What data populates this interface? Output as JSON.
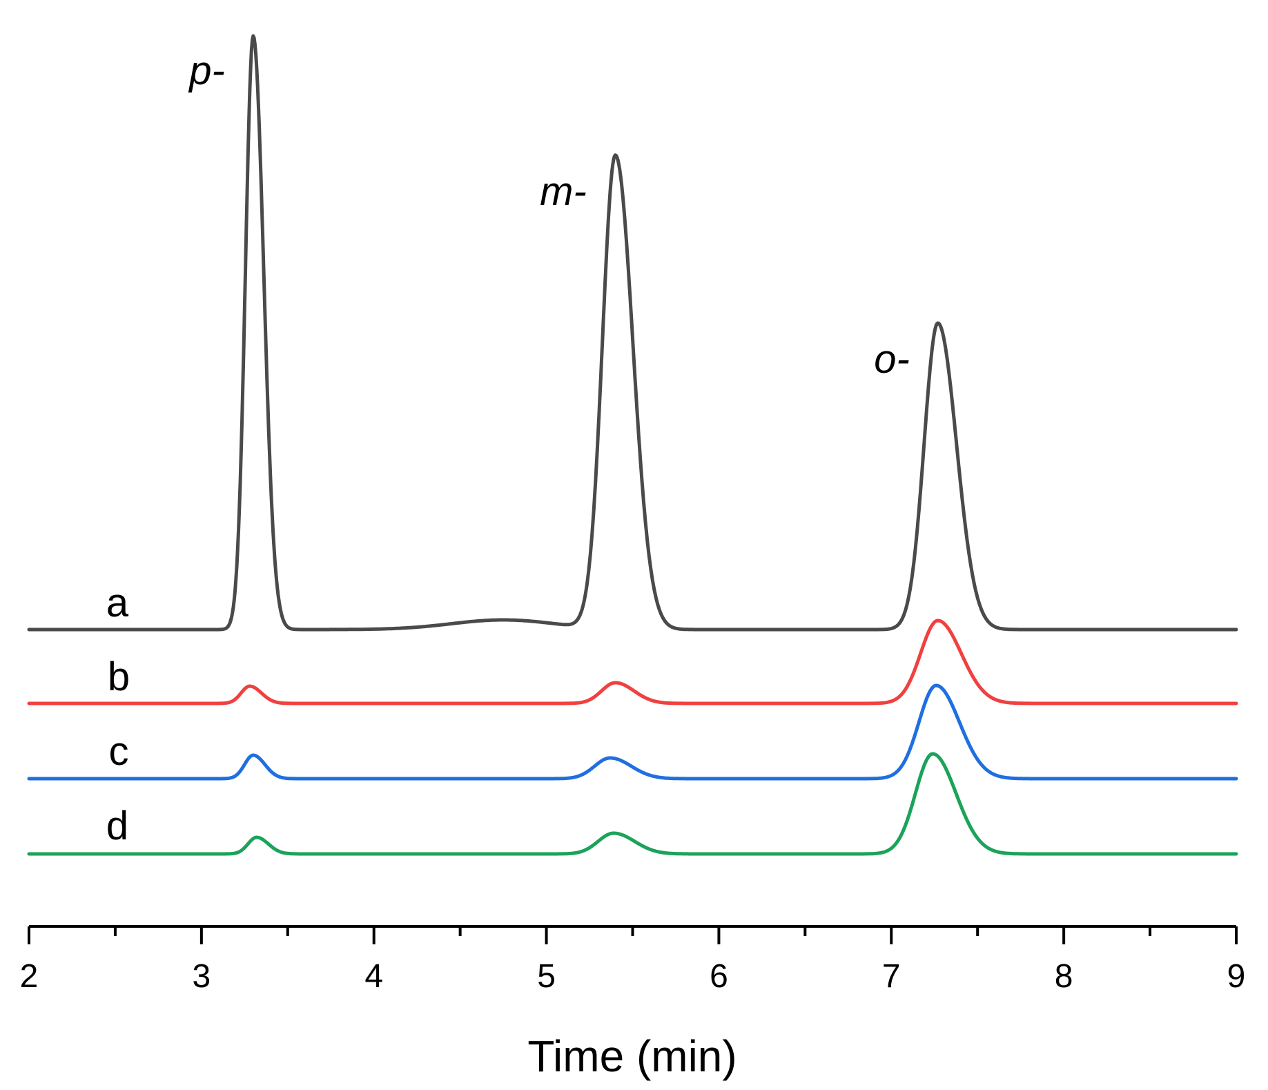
{
  "chart_data": {
    "type": "line",
    "title": "",
    "xlabel": "Time (min)",
    "ylabel": "",
    "xlim": [
      2,
      9
    ],
    "x_ticks": [
      "2",
      "3",
      "4",
      "5",
      "6",
      "7",
      "8",
      "9"
    ],
    "minor_ticks": true,
    "grid": false,
    "y_axis_visible": false,
    "series": [
      {
        "name": "a",
        "label": "a",
        "color": "#4a4a4a",
        "baseline": 0,
        "peaks": [
          {
            "t": 3.3,
            "height": 860,
            "width": 0.045
          },
          {
            "t": 5.4,
            "height": 686,
            "width": 0.075
          },
          {
            "t": 7.27,
            "height": 444,
            "width": 0.08
          }
        ],
        "bumps": [
          {
            "t": 4.75,
            "height": 14,
            "width": 0.3
          }
        ]
      },
      {
        "name": "b",
        "label": "b",
        "color": "#f04040",
        "baseline": -107,
        "peaks": [
          {
            "t": 3.28,
            "height": 25,
            "width": 0.05
          },
          {
            "t": 5.4,
            "height": 30,
            "width": 0.08
          },
          {
            "t": 7.27,
            "height": 120,
            "width": 0.1
          }
        ],
        "bumps": []
      },
      {
        "name": "c",
        "label": "c",
        "color": "#1f6fe0",
        "baseline": -216,
        "peaks": [
          {
            "t": 3.3,
            "height": 34,
            "width": 0.05
          },
          {
            "t": 5.37,
            "height": 30,
            "width": 0.09
          },
          {
            "t": 7.26,
            "height": 135,
            "width": 0.1
          }
        ],
        "bumps": []
      },
      {
        "name": "d",
        "label": "d",
        "color": "#1ba35a",
        "baseline": -325,
        "peaks": [
          {
            "t": 3.32,
            "height": 24,
            "width": 0.05
          },
          {
            "t": 5.39,
            "height": 30,
            "width": 0.09
          },
          {
            "t": 7.24,
            "height": 145,
            "width": 0.1
          }
        ],
        "bumps": []
      }
    ],
    "annotations": [
      {
        "text": "p-",
        "t": 3.3
      },
      {
        "text": "m-",
        "t": 5.4
      },
      {
        "text": "o-",
        "t": 7.27
      }
    ]
  }
}
